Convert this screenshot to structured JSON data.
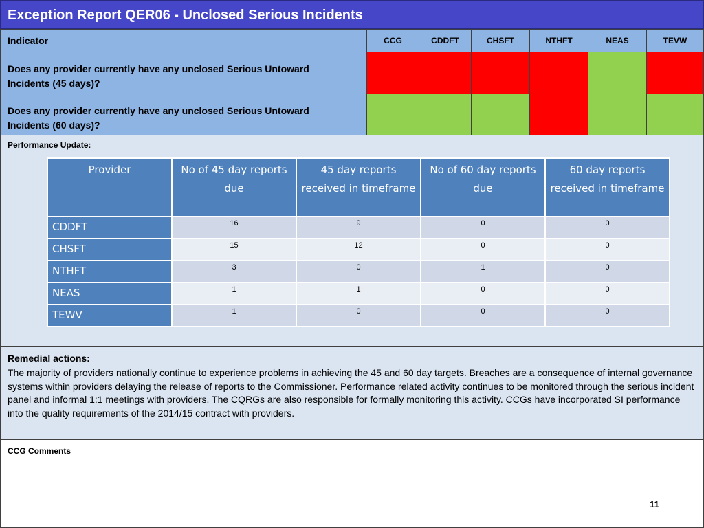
{
  "title": "Exception Report QER06 - Unclosed Serious Incidents",
  "indicator": {
    "header": "Indicator",
    "columns": [
      "CCG",
      "CDDFT",
      "CHSFT",
      "NTHFT",
      "NEAS",
      "TEVW"
    ],
    "rows": [
      {
        "question": "Does any provider currently have any unclosed Serious Untoward Incidents (45 days)?",
        "status": [
          "red",
          "red",
          "red",
          "red",
          "green",
          "red"
        ]
      },
      {
        "question": "Does any provider currently have any unclosed Serious Untoward Incidents (60 days)?",
        "status": [
          "green",
          "green",
          "green",
          "red",
          "green",
          "green"
        ]
      }
    ],
    "colors": {
      "red": "#ff0000",
      "green": "#92d050"
    }
  },
  "performance": {
    "label": "Performance Update:",
    "headers": [
      "Provider",
      "No of 45 day reports due",
      "45 day reports received in timeframe",
      "No of 60 day reports due",
      "60 day reports received in timeframe"
    ],
    "rows": [
      [
        "CDDFT",
        "16",
        "9",
        "0",
        "0"
      ],
      [
        "CHSFT",
        "15",
        "12",
        "0",
        "0"
      ],
      [
        "NTHFT",
        "3",
        "0",
        "1",
        "0"
      ],
      [
        "NEAS",
        "1",
        "1",
        "0",
        "0"
      ],
      [
        "TEWV",
        "1",
        "0",
        "0",
        "0"
      ]
    ]
  },
  "remedial": {
    "heading": "Remedial actions:",
    "text": "The majority of providers nationally continue to experience problems in achieving the 45 and 60 day targets. Breaches are a consequence of internal governance systems within providers delaying the release of reports to the Commissioner. Performance related activity continues to be monitored through the serious incident panel and informal 1:1 meetings with providers. The CQRGs are also responsible for formally monitoring this activity.  CCGs have  incorporated SI performance into the quality requirements of the 2014/15 contract with providers."
  },
  "comments": {
    "heading": "CCG Comments"
  },
  "page_number": "11"
}
